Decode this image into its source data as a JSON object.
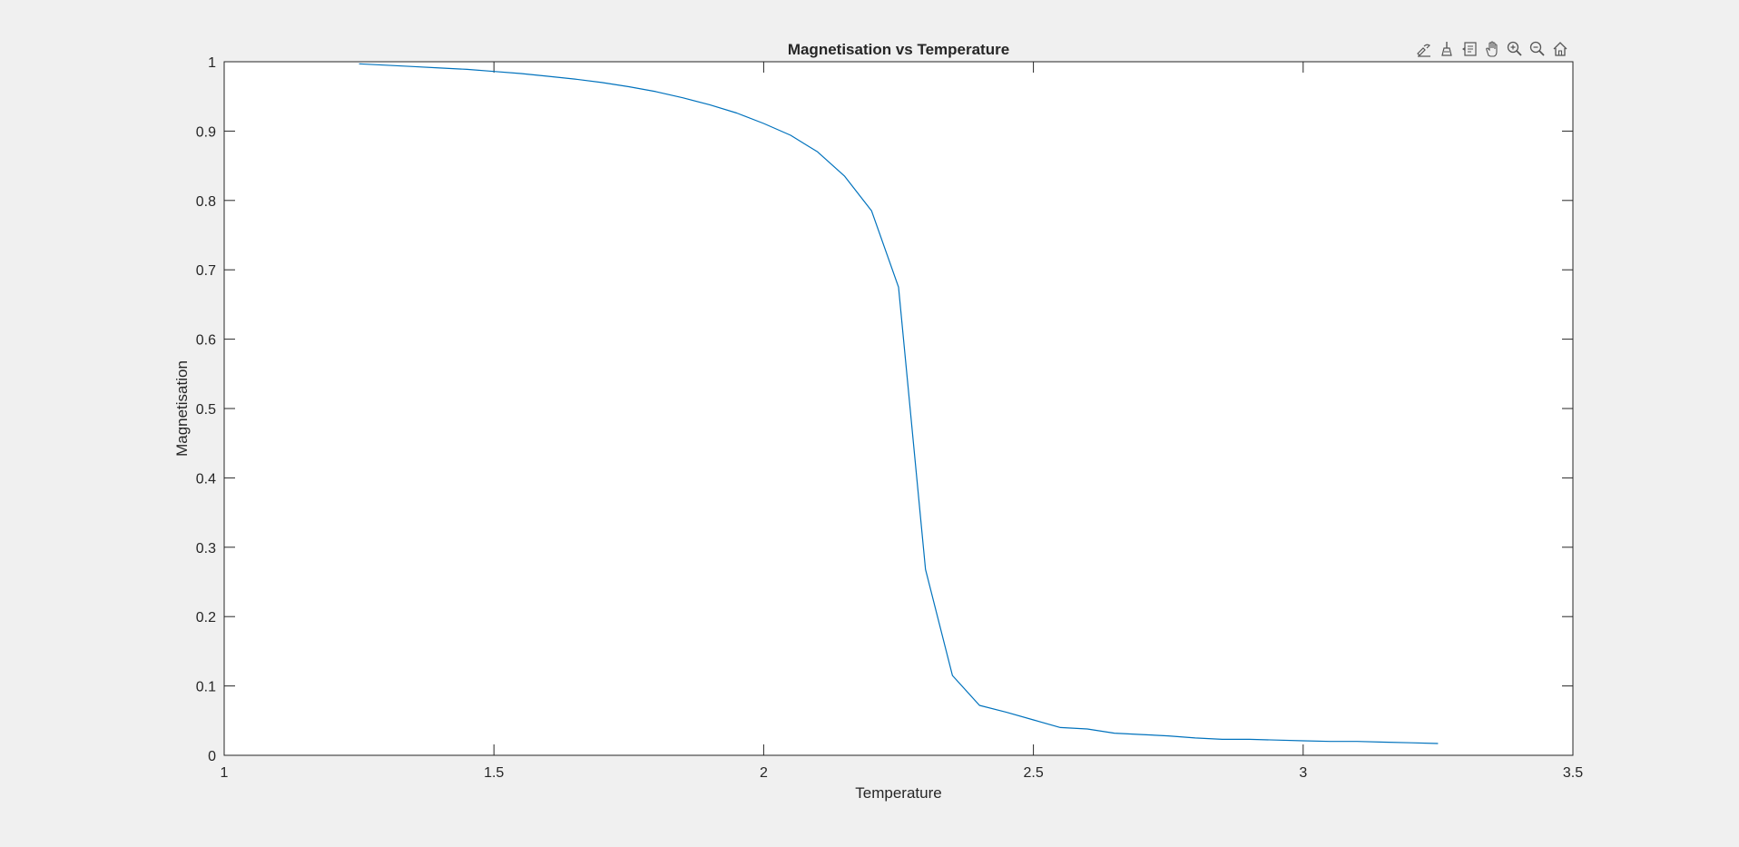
{
  "figure": {
    "background": "#f0f0f0",
    "axes_background": "#ffffff",
    "axes_color": "#262626",
    "line_color": "#0072bd"
  },
  "toolbar": {
    "buttons": [
      {
        "name": "export-icon"
      },
      {
        "name": "brush-icon"
      },
      {
        "name": "data-tips-icon"
      },
      {
        "name": "pan-icon"
      },
      {
        "name": "zoom-in-icon"
      },
      {
        "name": "zoom-out-icon"
      },
      {
        "name": "home-icon"
      }
    ]
  },
  "chart_data": {
    "type": "line",
    "title": "Magnetisation vs Temperature",
    "xlabel": "Temperature",
    "ylabel": "Magnetisation",
    "xlim": [
      1,
      3.5
    ],
    "ylim": [
      0,
      1
    ],
    "xticks": [
      1,
      1.5,
      2,
      2.5,
      3,
      3.5
    ],
    "xtick_labels": [
      "1",
      "1.5",
      "2",
      "2.5",
      "3",
      "3.5"
    ],
    "yticks": [
      0,
      0.1,
      0.2,
      0.3,
      0.4,
      0.5,
      0.6,
      0.7,
      0.8,
      0.9,
      1
    ],
    "ytick_labels": [
      "0",
      "0.1",
      "0.2",
      "0.3",
      "0.4",
      "0.5",
      "0.6",
      "0.7",
      "0.8",
      "0.9",
      "1"
    ],
    "grid": false,
    "series": [
      {
        "x": [
          1.25,
          1.3,
          1.35,
          1.4,
          1.45,
          1.5,
          1.55,
          1.6,
          1.65,
          1.7,
          1.75,
          1.8,
          1.85,
          1.9,
          1.95,
          2.0,
          2.05,
          2.1,
          2.15,
          2.2,
          2.25,
          2.3,
          2.35,
          2.4,
          2.45,
          2.5,
          2.55,
          2.6,
          2.65,
          2.7,
          2.75,
          2.8,
          2.85,
          2.9,
          2.95,
          3.0,
          3.05,
          3.1,
          3.15,
          3.2,
          3.25
        ],
        "y": [
          0.997,
          0.995,
          0.993,
          0.991,
          0.989,
          0.986,
          0.983,
          0.979,
          0.975,
          0.97,
          0.964,
          0.957,
          0.948,
          0.938,
          0.926,
          0.911,
          0.894,
          0.87,
          0.835,
          0.785,
          0.675,
          0.268,
          0.115,
          0.072,
          0.062,
          0.051,
          0.04,
          0.038,
          0.032,
          0.03,
          0.028,
          0.025,
          0.023,
          0.023,
          0.022,
          0.021,
          0.02,
          0.02,
          0.019,
          0.018,
          0.017
        ]
      }
    ]
  }
}
